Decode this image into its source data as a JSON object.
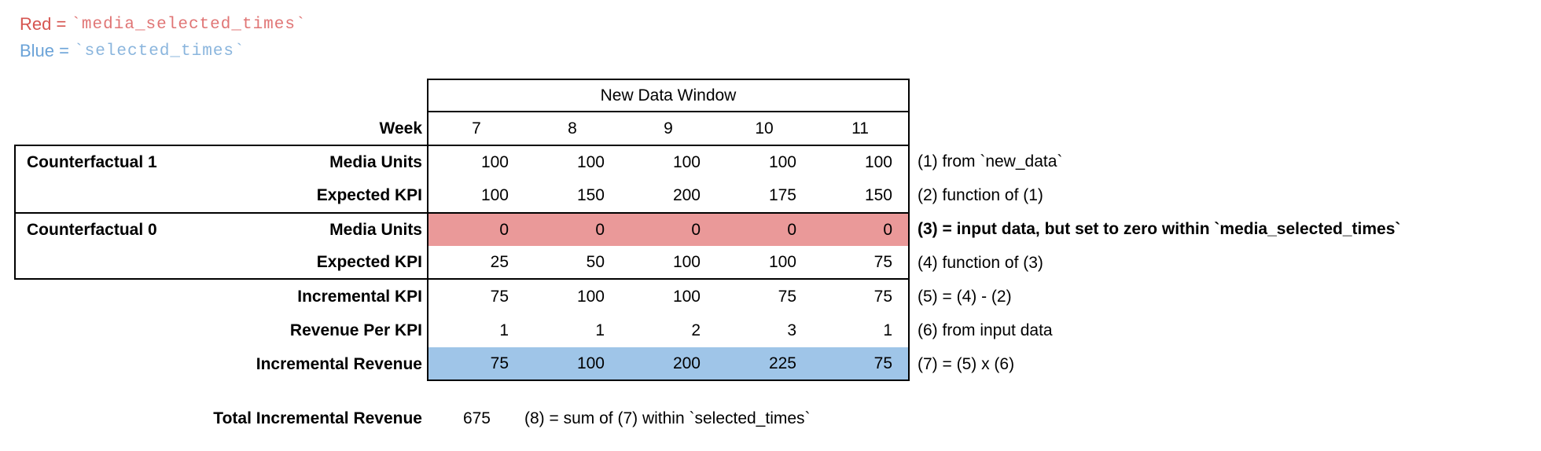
{
  "legend": {
    "red_label": "Red =",
    "red_code": "`media_selected_times`",
    "blue_label": "Blue =",
    "blue_code": "`selected_times`"
  },
  "colors": {
    "red_fill": "#ea9999",
    "blue_fill": "#9fc5e8",
    "legend_red_text": "#d65550",
    "legend_red_code_text": "#e07575",
    "legend_blue_text": "#6ba3d8",
    "legend_blue_code_text": "#8ab5dd",
    "border": "#000000"
  },
  "table": {
    "window_header": "New Data Window",
    "week_label": "Week",
    "weeks": [
      "7",
      "8",
      "9",
      "10",
      "11"
    ],
    "rows": [
      {
        "section": "Counterfactual 1",
        "label": "Media Units",
        "values": [
          "100",
          "100",
          "100",
          "100",
          "100"
        ],
        "annotation": "(1) from `new_data`"
      },
      {
        "section": "",
        "label": "Expected KPI",
        "values": [
          "100",
          "150",
          "200",
          "175",
          "150"
        ],
        "annotation": "(2) function of (1)"
      },
      {
        "section": "Counterfactual 0",
        "label": "Media Units",
        "values": [
          "0",
          "0",
          "0",
          "0",
          "0"
        ],
        "annotation": "(3) = input data, but set to zero within `media_selected_times`",
        "highlight": "red"
      },
      {
        "section": "",
        "label": "Expected KPI",
        "values": [
          "25",
          "50",
          "100",
          "100",
          "75"
        ],
        "annotation": "(4) function of (3)"
      },
      {
        "section": "",
        "label": "Incremental KPI",
        "values": [
          "75",
          "100",
          "100",
          "75",
          "75"
        ],
        "annotation": "(5) = (4) - (2)"
      },
      {
        "section": "",
        "label": "Revenue Per KPI",
        "values": [
          "1",
          "1",
          "2",
          "3",
          "1"
        ],
        "annotation": "(6) from input data"
      },
      {
        "section": "",
        "label": "Incremental Revenue",
        "values": [
          "75",
          "100",
          "200",
          "225",
          "75"
        ],
        "annotation": "(7) = (5) x (6)",
        "highlight": "blue"
      }
    ]
  },
  "total": {
    "label": "Total Incremental Revenue",
    "value": "675",
    "annotation": "(8) = sum of (7) within `selected_times`"
  }
}
